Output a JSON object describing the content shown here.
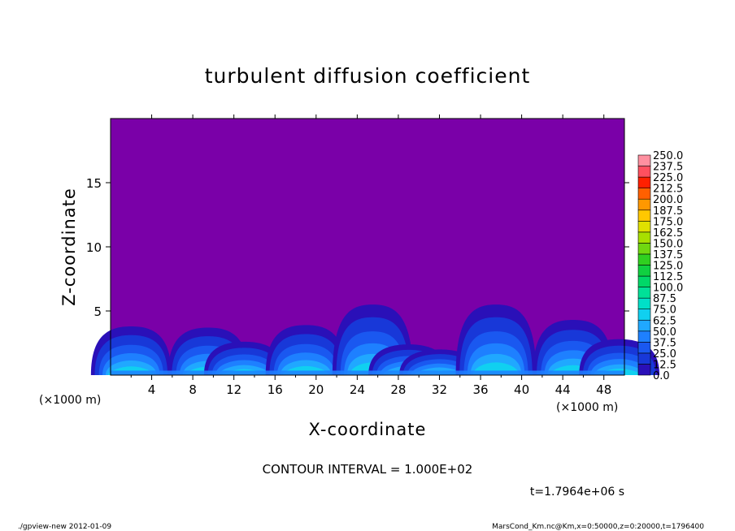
{
  "chart_data": {
    "type": "heatmap",
    "title": "turbulent diffusion coefficient",
    "xlabel": "X-coordinate",
    "ylabel": "Z-coordinate",
    "x_unit_left": "(×1000 m)",
    "x_unit_right": "(×1000 m)",
    "xlim": [
      0,
      50
    ],
    "ylim": [
      0,
      20
    ],
    "x_ticks": [
      4,
      8,
      12,
      16,
      20,
      24,
      28,
      32,
      36,
      40,
      44,
      48
    ],
    "y_ticks": [
      5,
      10,
      15
    ],
    "grid": false,
    "background_value": 0.0,
    "contour_interval": "CONTOUR INTERVAL = 1.000E+02",
    "time_label": "t=1.7964e+06 s",
    "colorbar": {
      "placement": "right",
      "levels": [
        "0.0",
        "12.5",
        "25.0",
        "37.5",
        "50.0",
        "62.5",
        "75.0",
        "87.5",
        "100.0",
        "112.5",
        "125.0",
        "137.5",
        "150.0",
        "162.5",
        "175.0",
        "187.5",
        "200.0",
        "212.5",
        "225.0",
        "237.5",
        "250.0"
      ],
      "colors": [
        "#7a00a8",
        "#2a10b8",
        "#1838d8",
        "#1a58f0",
        "#1e80ff",
        "#20a8ff",
        "#10d0f0",
        "#00e0c8",
        "#00e098",
        "#00d868",
        "#10d040",
        "#30d020",
        "#70d810",
        "#a8e000",
        "#e0e000",
        "#ffc800",
        "#ff9800",
        "#ff6000",
        "#ff2000",
        "#ff5060",
        "#ff90a0"
      ]
    },
    "plumes": [
      {
        "x": 2.0,
        "height": 3.8
      },
      {
        "x": 9.5,
        "height": 3.7
      },
      {
        "x": 13.0,
        "height": 2.6
      },
      {
        "x": 19.0,
        "height": 3.9
      },
      {
        "x": 25.5,
        "height": 5.5
      },
      {
        "x": 29.0,
        "height": 2.4
      },
      {
        "x": 32.0,
        "height": 2.0
      },
      {
        "x": 37.5,
        "height": 5.5
      },
      {
        "x": 45.0,
        "height": 4.3
      },
      {
        "x": 49.5,
        "height": 2.8
      }
    ]
  },
  "footer": {
    "left": "./gpview-new  2012-01-09",
    "right": "MarsCond_Km.nc@Km,x=0:50000,z=0:20000,t=1796400"
  }
}
